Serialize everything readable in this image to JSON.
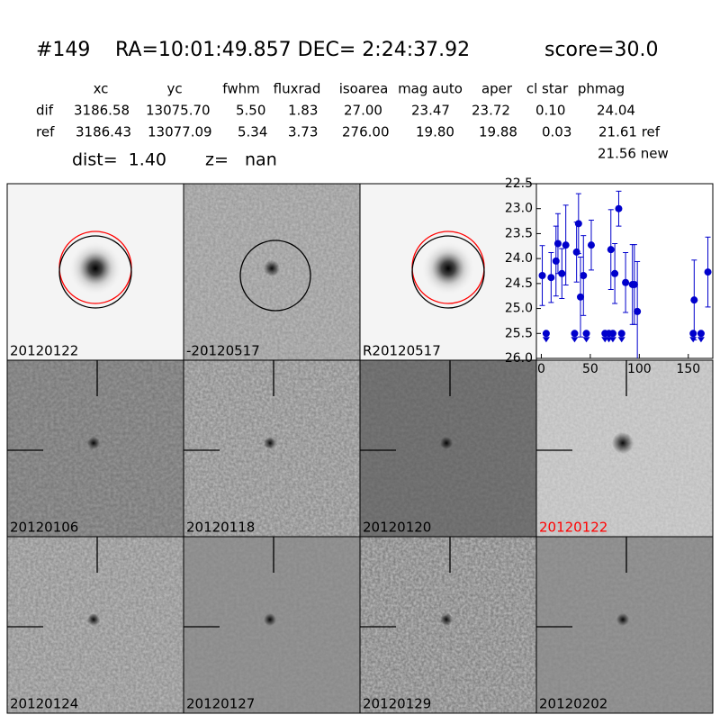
{
  "header": {
    "id": "#149",
    "coords": "RA=10:01:49.857 DEC= 2:24:37.92",
    "score": "score=30.0"
  },
  "table": {
    "columns": [
      "xc",
      "yc",
      "fwhm",
      "fluxrad",
      "isoarea",
      "mag auto",
      "aper",
      "cl star",
      "phmag"
    ],
    "rows": [
      [
        "dif",
        "3186.58",
        "13075.70",
        "5.50",
        "1.83",
        "27.00",
        "23.47",
        "23.72",
        "0.10",
        "24.04"
      ],
      [
        "ref",
        "3186.43",
        "13077.09",
        "5.34",
        "3.73",
        "276.00",
        "19.80",
        "19.88",
        "0.03",
        "21.61 ref"
      ]
    ],
    "extra": "21.56 new"
  },
  "dist": "dist=  1.40",
  "z": "z=   nan",
  "panels": [
    {
      "label": "20120122",
      "color": "#000000"
    },
    {
      "label": "-20120517",
      "color": "#000000"
    },
    {
      "label": "R20120517",
      "color": "#000000"
    },
    {
      "label": "20120106",
      "color": "#000000"
    },
    {
      "label": "20120118",
      "color": "#000000"
    },
    {
      "label": "20120120",
      "color": "#000000"
    },
    {
      "label": "20120122",
      "color": "#ff0000"
    },
    {
      "label": "20120124",
      "color": "#000000"
    },
    {
      "label": "20120127",
      "color": "#000000"
    },
    {
      "label": "20120129",
      "color": "#000000"
    },
    {
      "label": "20120202",
      "color": "#000000"
    }
  ],
  "chart_data": {
    "type": "errorbar",
    "xlim": [
      -5,
      175
    ],
    "ylim": [
      22.5,
      26.0
    ],
    "y_inverted": true,
    "xticks": [
      0,
      50,
      100,
      150
    ],
    "yticks": [
      22.5,
      {
        "value": 23,
        "label": "23.0"
      },
      23.5,
      {
        "value": 24,
        "label": "24.0"
      },
      24.5,
      {
        "value": 25,
        "label": "25.0"
      },
      25.5,
      {
        "value": 26,
        "label": "26.0"
      }
    ],
    "series": [
      {
        "color": "#0000cc",
        "marker": "o",
        "x": [
          1,
          10,
          15,
          17,
          21,
          25,
          36,
          38,
          40,
          43,
          51,
          71,
          75,
          79,
          86,
          93,
          95,
          98,
          156,
          170
        ],
        "values": [
          24.34,
          24.38,
          24.05,
          23.7,
          24.3,
          23.73,
          23.87,
          23.3,
          24.77,
          24.34,
          23.73,
          23.82,
          24.3,
          23.0,
          24.48,
          24.52,
          24.52,
          25.06,
          24.83,
          24.27
        ],
        "errors": [
          0.6,
          0.5,
          0.7,
          0.6,
          0.5,
          0.8,
          0.6,
          0.6,
          0.8,
          0.8,
          0.5,
          0.8,
          0.6,
          0.35,
          0.6,
          0.8,
          0.8,
          1.0,
          0.8,
          0.7
        ]
      },
      {
        "color": "#0000cc",
        "marker": "limit",
        "x": [
          5,
          34,
          46,
          65,
          69,
          73,
          82,
          155,
          163
        ],
        "values": [
          25.5,
          25.5,
          25.5,
          25.5,
          25.5,
          25.5,
          25.5,
          25.5,
          25.5
        ]
      }
    ]
  }
}
